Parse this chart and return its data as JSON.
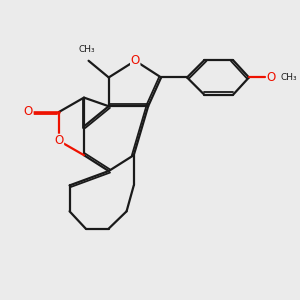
{
  "background_color": "#ebebeb",
  "bond_color": "#1a1a1a",
  "oxygen_color": "#ee1100",
  "figsize": [
    3.0,
    3.0
  ],
  "dpi": 100,
  "xlim": [
    -4.2,
    5.5
  ],
  "ylim": [
    -3.2,
    5.2
  ]
}
